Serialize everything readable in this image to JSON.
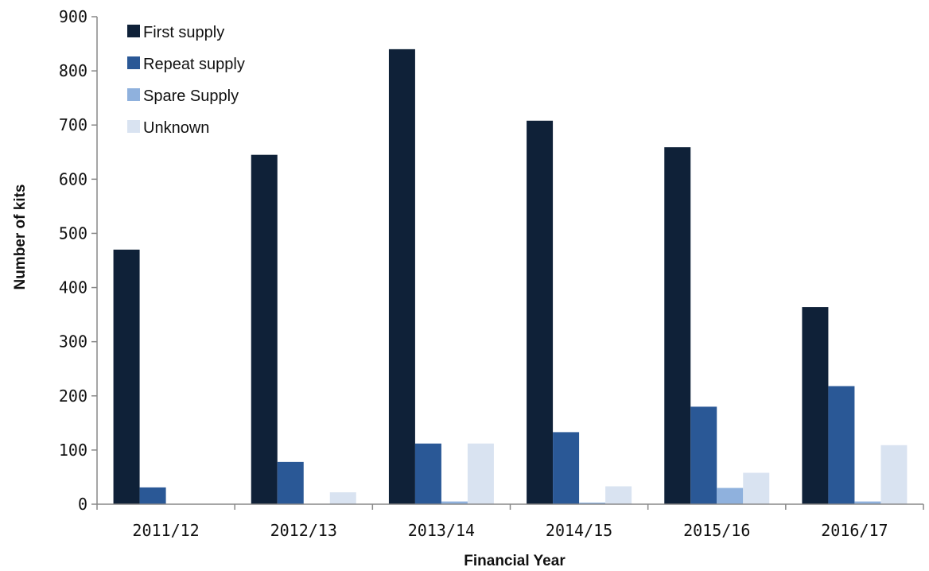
{
  "chart_data": {
    "type": "bar",
    "xlabel": "Financial Year",
    "ylabel": "Number of kits",
    "ylim": [
      0,
      900
    ],
    "yticks": [
      0,
      100,
      200,
      300,
      400,
      500,
      600,
      700,
      800,
      900
    ],
    "categories": [
      "2011/12",
      "2012/13",
      "2013/14",
      "2014/15",
      "2015/16",
      "2016/17"
    ],
    "series": [
      {
        "name": "First supply",
        "color": "#0f2138",
        "values": [
          470,
          645,
          840,
          708,
          659,
          364
        ]
      },
      {
        "name": "Repeat supply",
        "color": "#2a5896",
        "values": [
          31,
          78,
          112,
          133,
          180,
          218
        ]
      },
      {
        "name": "Spare Supply",
        "color": "#8fb1dd",
        "values": [
          0,
          0,
          5,
          3,
          30,
          5
        ]
      },
      {
        "name": "Unknown",
        "color": "#d9e3f1",
        "values": [
          0,
          22,
          112,
          33,
          58,
          109
        ]
      }
    ],
    "legend_position": "top-left",
    "grid": false
  }
}
